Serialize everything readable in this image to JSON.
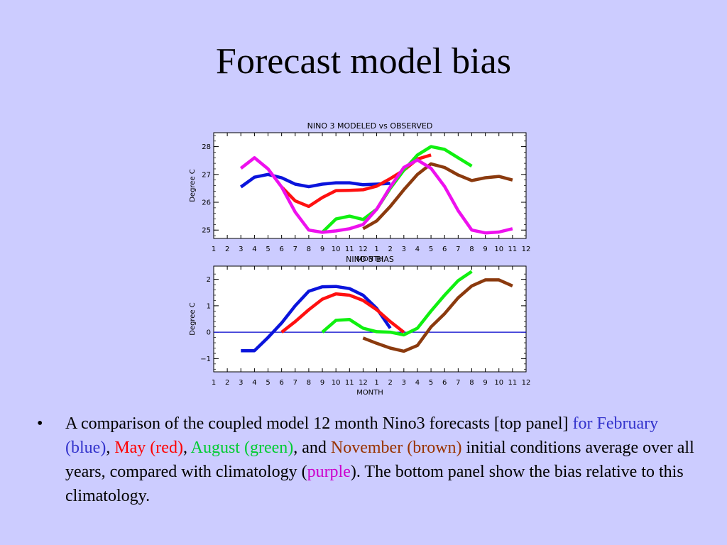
{
  "slide": {
    "title": "Forecast model bias",
    "bullet": "•",
    "caption": {
      "p1": "A comparison of the coupled model 12 month Nino3 forecasts [top panel] ",
      "for_feb": "for February (blue)",
      "sep1": ", ",
      "may": "May (red)",
      "sep2": ", ",
      "aug": "August (green)",
      "sep3": ", and ",
      "nov": "November (brown)",
      "p2": " initial conditions average over all years, compared with climatology (",
      "purple": "purple",
      "p3": "). The bottom panel show the bias relative to this climatology."
    }
  },
  "colors": {
    "feb": "#0a14dc",
    "may": "#ff1010",
    "aug": "#10f010",
    "nov": "#8b3a0e",
    "clim": "#ee10ee",
    "zero_line": "#0000cc"
  },
  "chart_data": [
    {
      "type": "line",
      "title": "NINO 3 MODELED vs OBSERVED",
      "xlabel": "MONTH",
      "ylabel": "Degree C",
      "x_ticks": [
        "1",
        "2",
        "3",
        "4",
        "5",
        "6",
        "7",
        "8",
        "9",
        "10",
        "11",
        "12",
        "1",
        "2",
        "3",
        "4",
        "5",
        "6",
        "7",
        "8",
        "9",
        "10",
        "11",
        "12"
      ],
      "xlim": [
        1,
        24
      ],
      "ylim": [
        24.7,
        28.5
      ],
      "y_ticks": [
        25,
        26,
        27,
        28
      ],
      "series": [
        {
          "key": "feb",
          "x": [
            3,
            4,
            5,
            6,
            7,
            8,
            9,
            10,
            11,
            12,
            13,
            14
          ],
          "values": [
            26.55,
            26.9,
            27.0,
            26.88,
            26.65,
            26.56,
            26.65,
            26.7,
            26.7,
            26.63,
            26.65,
            26.68
          ]
        },
        {
          "key": "may",
          "x": [
            6,
            7,
            8,
            9,
            10,
            11,
            12,
            13,
            14,
            15,
            16,
            17
          ],
          "values": [
            26.55,
            26.05,
            25.85,
            26.17,
            26.42,
            26.43,
            26.45,
            26.58,
            26.85,
            27.15,
            27.55,
            27.7
          ]
        },
        {
          "key": "aug",
          "x": [
            9,
            10,
            11,
            12,
            13,
            14,
            15,
            16,
            17,
            18,
            19,
            20
          ],
          "values": [
            24.92,
            25.4,
            25.5,
            25.38,
            25.75,
            26.5,
            27.15,
            27.7,
            28.0,
            27.9,
            27.6,
            27.3
          ]
        },
        {
          "key": "nov",
          "x": [
            12,
            13,
            14,
            15,
            16,
            17,
            18,
            19,
            20,
            21,
            22,
            23
          ],
          "values": [
            25.05,
            25.33,
            25.85,
            26.45,
            27.0,
            27.38,
            27.25,
            26.98,
            26.78,
            26.88,
            26.93,
            26.8
          ]
        },
        {
          "key": "clim",
          "x": [
            3,
            4,
            5,
            6,
            7,
            8,
            9,
            10,
            11,
            12,
            13,
            14,
            15,
            16,
            17,
            18,
            19,
            20,
            21,
            22,
            23
          ],
          "values": [
            27.22,
            27.6,
            27.2,
            26.55,
            25.65,
            25.0,
            24.92,
            24.97,
            25.05,
            25.2,
            25.75,
            26.55,
            27.25,
            27.52,
            27.22,
            26.57,
            25.7,
            25.0,
            24.9,
            24.93,
            25.05
          ]
        }
      ]
    },
    {
      "type": "line",
      "title": "NINO 3 BIAS",
      "xlabel": "MONTH",
      "ylabel": "Degree C",
      "x_ticks": [
        "1",
        "2",
        "3",
        "4",
        "5",
        "6",
        "7",
        "8",
        "9",
        "10",
        "11",
        "12",
        "1",
        "2",
        "3",
        "4",
        "5",
        "6",
        "7",
        "8",
        "9",
        "10",
        "11",
        "12"
      ],
      "xlim": [
        1,
        24
      ],
      "ylim": [
        -1.5,
        2.5
      ],
      "y_ticks": [
        -1,
        0,
        1,
        2
      ],
      "zero_line": true,
      "series": [
        {
          "key": "feb",
          "x": [
            3,
            4,
            5,
            6,
            7,
            8,
            9,
            10,
            11,
            12,
            13,
            14
          ],
          "values": [
            -0.7,
            -0.7,
            -0.2,
            0.35,
            1.0,
            1.55,
            1.72,
            1.73,
            1.65,
            1.4,
            0.9,
            0.15
          ]
        },
        {
          "key": "may",
          "x": [
            6,
            7,
            8,
            9,
            10,
            11,
            12,
            13,
            14,
            15
          ],
          "values": [
            0.0,
            0.4,
            0.85,
            1.25,
            1.45,
            1.4,
            1.2,
            0.85,
            0.4,
            0.0
          ]
        },
        {
          "key": "aug",
          "x": [
            9,
            10,
            11,
            12,
            13,
            14,
            15,
            16,
            17,
            18,
            19,
            20
          ],
          "values": [
            0.0,
            0.45,
            0.48,
            0.15,
            0.02,
            0.0,
            -0.1,
            0.15,
            0.8,
            1.4,
            1.95,
            2.3
          ]
        },
        {
          "key": "nov",
          "x": [
            12,
            13,
            14,
            15,
            16,
            17,
            18,
            19,
            20,
            21,
            22,
            23
          ],
          "values": [
            -0.22,
            -0.42,
            -0.6,
            -0.72,
            -0.5,
            0.2,
            0.7,
            1.3,
            1.75,
            1.98,
            1.98,
            1.75
          ]
        }
      ]
    }
  ]
}
